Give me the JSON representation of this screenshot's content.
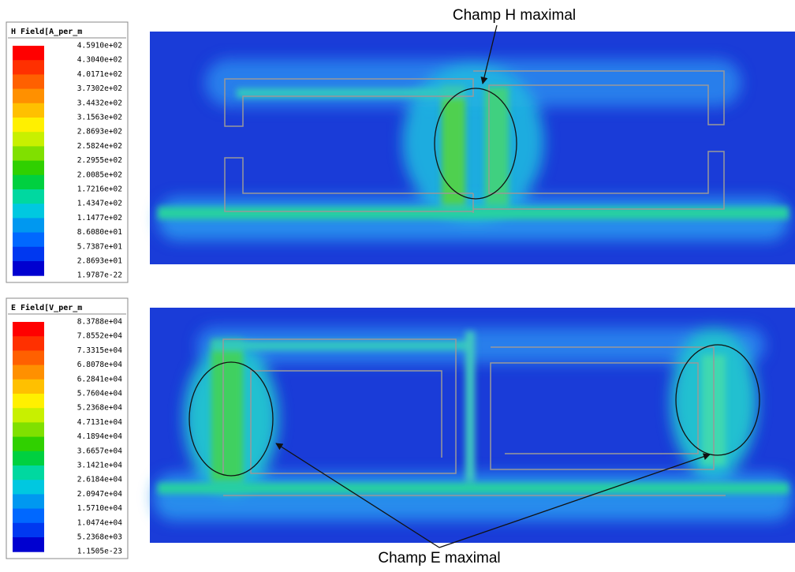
{
  "legends": [
    {
      "title": "H Field[A_per_m",
      "labels": [
        "4.5910e+02",
        "4.3040e+02",
        "4.0171e+02",
        "3.7302e+02",
        "3.4432e+02",
        "3.1563e+02",
        "2.8693e+02",
        "2.5824e+02",
        "2.2955e+02",
        "2.0085e+02",
        "1.7216e+02",
        "1.4347e+02",
        "1.1477e+02",
        "8.6080e+01",
        "5.7387e+01",
        "2.8693e+01",
        "1.9787e-22"
      ]
    },
    {
      "title": "E Field[V_per_m",
      "labels": [
        "8.3788e+04",
        "7.8552e+04",
        "7.3315e+04",
        "6.8078e+04",
        "6.2841e+04",
        "5.7604e+04",
        "5.2368e+04",
        "4.7131e+04",
        "4.1894e+04",
        "3.6657e+04",
        "3.1421e+04",
        "2.6184e+04",
        "2.0947e+04",
        "1.5710e+04",
        "1.0474e+04",
        "5.2368e+03",
        "1.1505e-23"
      ]
    }
  ],
  "colors": [
    "#ff0000",
    "#ff3000",
    "#ff6000",
    "#ff9000",
    "#ffc000",
    "#fff000",
    "#c8f000",
    "#80e000",
    "#30d000",
    "#00d040",
    "#00d8a0",
    "#00c8e0",
    "#0098f0",
    "#0068ff",
    "#0038f0",
    "#0000d0"
  ],
  "annotations": {
    "h_max": "Champ H maximal",
    "e_max": "Champ E maximal"
  }
}
